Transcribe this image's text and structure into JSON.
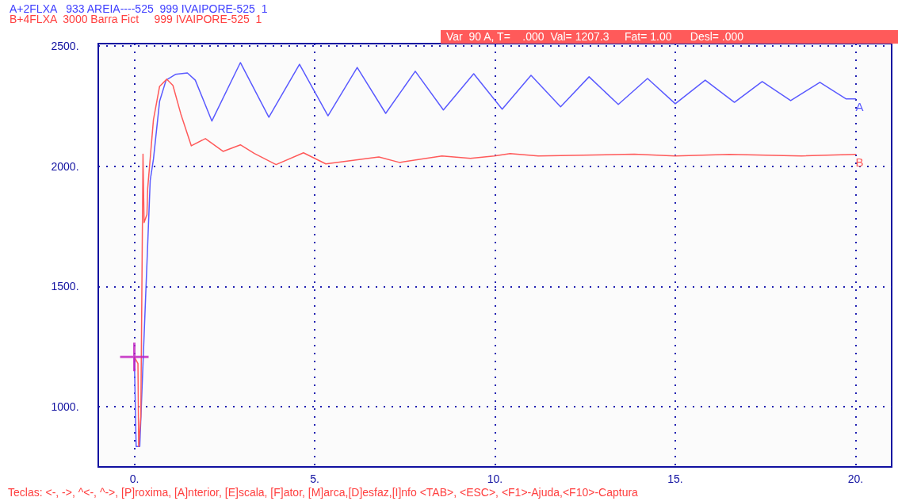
{
  "chart_data": {
    "type": "line",
    "annotations": [
      "A+2FLXA   933 AREIA----525  999 IVAIPORE-525  1",
      "B+4FLXA  3000 Barra Fict     999 IVAIPORE-525  1",
      "Var  90 A, T=    .000  Val= 1207.3     Fat= 1.00      Desl= .000",
      "Teclas: <-, ->, ^<-, ^->, [P]roxima, [A]nterior, [E]scala, [F]ator, [M]arca,[D]esfaz,[I]nfo <TAB>, <ESC>, <F1>-Ajuda,<F10>-Captura"
    ],
    "xlim": [
      -1,
      21
    ],
    "xticks": [
      {
        "value": 0,
        "label": "0."
      },
      {
        "value": 5,
        "label": "5."
      },
      {
        "value": 10,
        "label": "10."
      },
      {
        "value": 15,
        "label": "15."
      },
      {
        "value": 20,
        "label": "20."
      }
    ],
    "ylim": [
      750,
      2510
    ],
    "yticks": [
      {
        "value": 1000,
        "label": "1000."
      },
      {
        "value": 1500,
        "label": "1500."
      },
      {
        "value": 2000,
        "label": "2000."
      },
      {
        "value": 2500,
        "label": "2500."
      }
    ],
    "grid": true,
    "marker": "none",
    "line_style": "solid",
    "series": [
      {
        "name": "A",
        "color": "#5a5aff",
        "x": [
          0,
          0.05,
          0.15,
          0.44,
          0.53,
          0.7,
          0.88,
          1.14,
          1.47,
          1.69,
          2.15,
          2.94,
          3.73,
          4.58,
          5.37,
          6.18,
          6.97,
          7.79,
          8.57,
          9.41,
          10.2,
          11.0,
          11.82,
          12.61,
          13.42,
          14.23,
          15.0,
          15.83,
          16.64,
          17.41,
          18.2,
          19.01,
          19.74,
          20
        ],
        "values": [
          1207,
          835,
          835,
          1941,
          2030,
          2270,
          2358,
          2382,
          2388,
          2358,
          2188,
          2431,
          2204,
          2424,
          2210,
          2411,
          2220,
          2395,
          2234,
          2385,
          2237,
          2378,
          2247,
          2372,
          2257,
          2365,
          2260,
          2358,
          2266,
          2352,
          2273,
          2349,
          2280,
          2280
        ]
      },
      {
        "name": "B",
        "color": "#ff5a5a",
        "x": [
          0,
          0.1,
          0.12,
          0.18,
          0.24,
          0.27,
          0.35,
          0.37,
          0.53,
          0.7,
          0.9,
          1.07,
          1.29,
          1.58,
          1.97,
          2.46,
          2.94,
          3.33,
          3.93,
          4.69,
          5.31,
          6.78,
          7.35,
          8.53,
          9.32,
          9.98,
          10.42,
          11.2,
          13.86,
          15.0,
          16.5,
          18.5,
          20
        ],
        "values": [
          1207,
          1180,
          835,
          960,
          2050,
          1766,
          1800,
          1908,
          2194,
          2332,
          2362,
          2336,
          2217,
          2085,
          2115,
          2062,
          2089,
          2053,
          2007,
          2056,
          2010,
          2039,
          2016,
          2043,
          2033,
          2043,
          2053,
          2043,
          2050,
          2043,
          2049,
          2043,
          2049
        ]
      },
      {
        "type": "scatter",
        "marker": "cross",
        "color": "#c020c0",
        "x": [
          0
        ],
        "values": [
          1207.3
        ]
      }
    ]
  }
}
